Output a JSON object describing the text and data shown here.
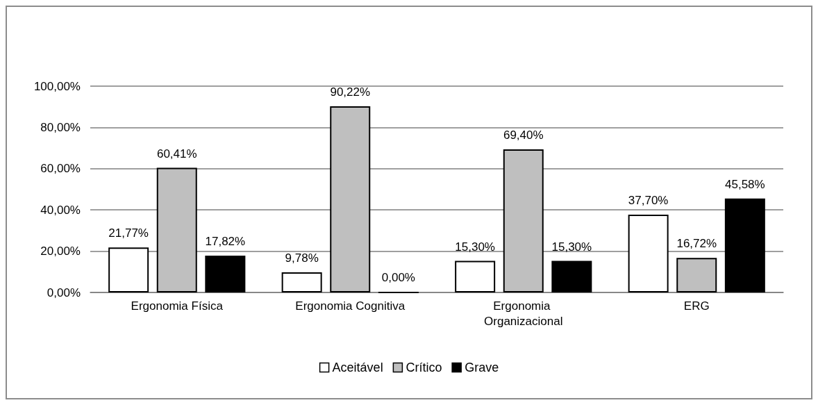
{
  "chart_data": {
    "type": "bar",
    "categories": [
      "Ergonomia Física",
      "Ergonomia Cognitiva",
      "Ergonomia Organizacional",
      "ERG"
    ],
    "series": [
      {
        "name": "Aceitável",
        "color": "#ffffff",
        "values": [
          21.77,
          9.78,
          15.3,
          37.7
        ],
        "value_labels": [
          "21,77%",
          "9,78%",
          "15,30%",
          "37,70%"
        ]
      },
      {
        "name": "Crítico",
        "color": "#bfbfbf",
        "values": [
          60.41,
          90.22,
          69.4,
          16.72
        ],
        "value_labels": [
          "60,41%",
          "90,22%",
          "69,40%",
          "16,72%"
        ]
      },
      {
        "name": "Grave",
        "color": "#000000",
        "values": [
          17.82,
          0,
          15.3,
          45.58
        ],
        "value_labels": [
          "17,82%",
          "0,00%",
          "15,30%",
          "45,58%"
        ]
      }
    ],
    "ylim": [
      0,
      100
    ],
    "yticks": [
      {
        "value": 0,
        "label": "0,00%"
      },
      {
        "value": 20,
        "label": "20,00%"
      },
      {
        "value": 40,
        "label": "40,00%"
      },
      {
        "value": 60,
        "label": "60,00%"
      },
      {
        "value": 80,
        "label": "80,00%"
      },
      {
        "value": 100,
        "label": "100,00%"
      }
    ],
    "grid": "y",
    "legend": "bottom"
  }
}
